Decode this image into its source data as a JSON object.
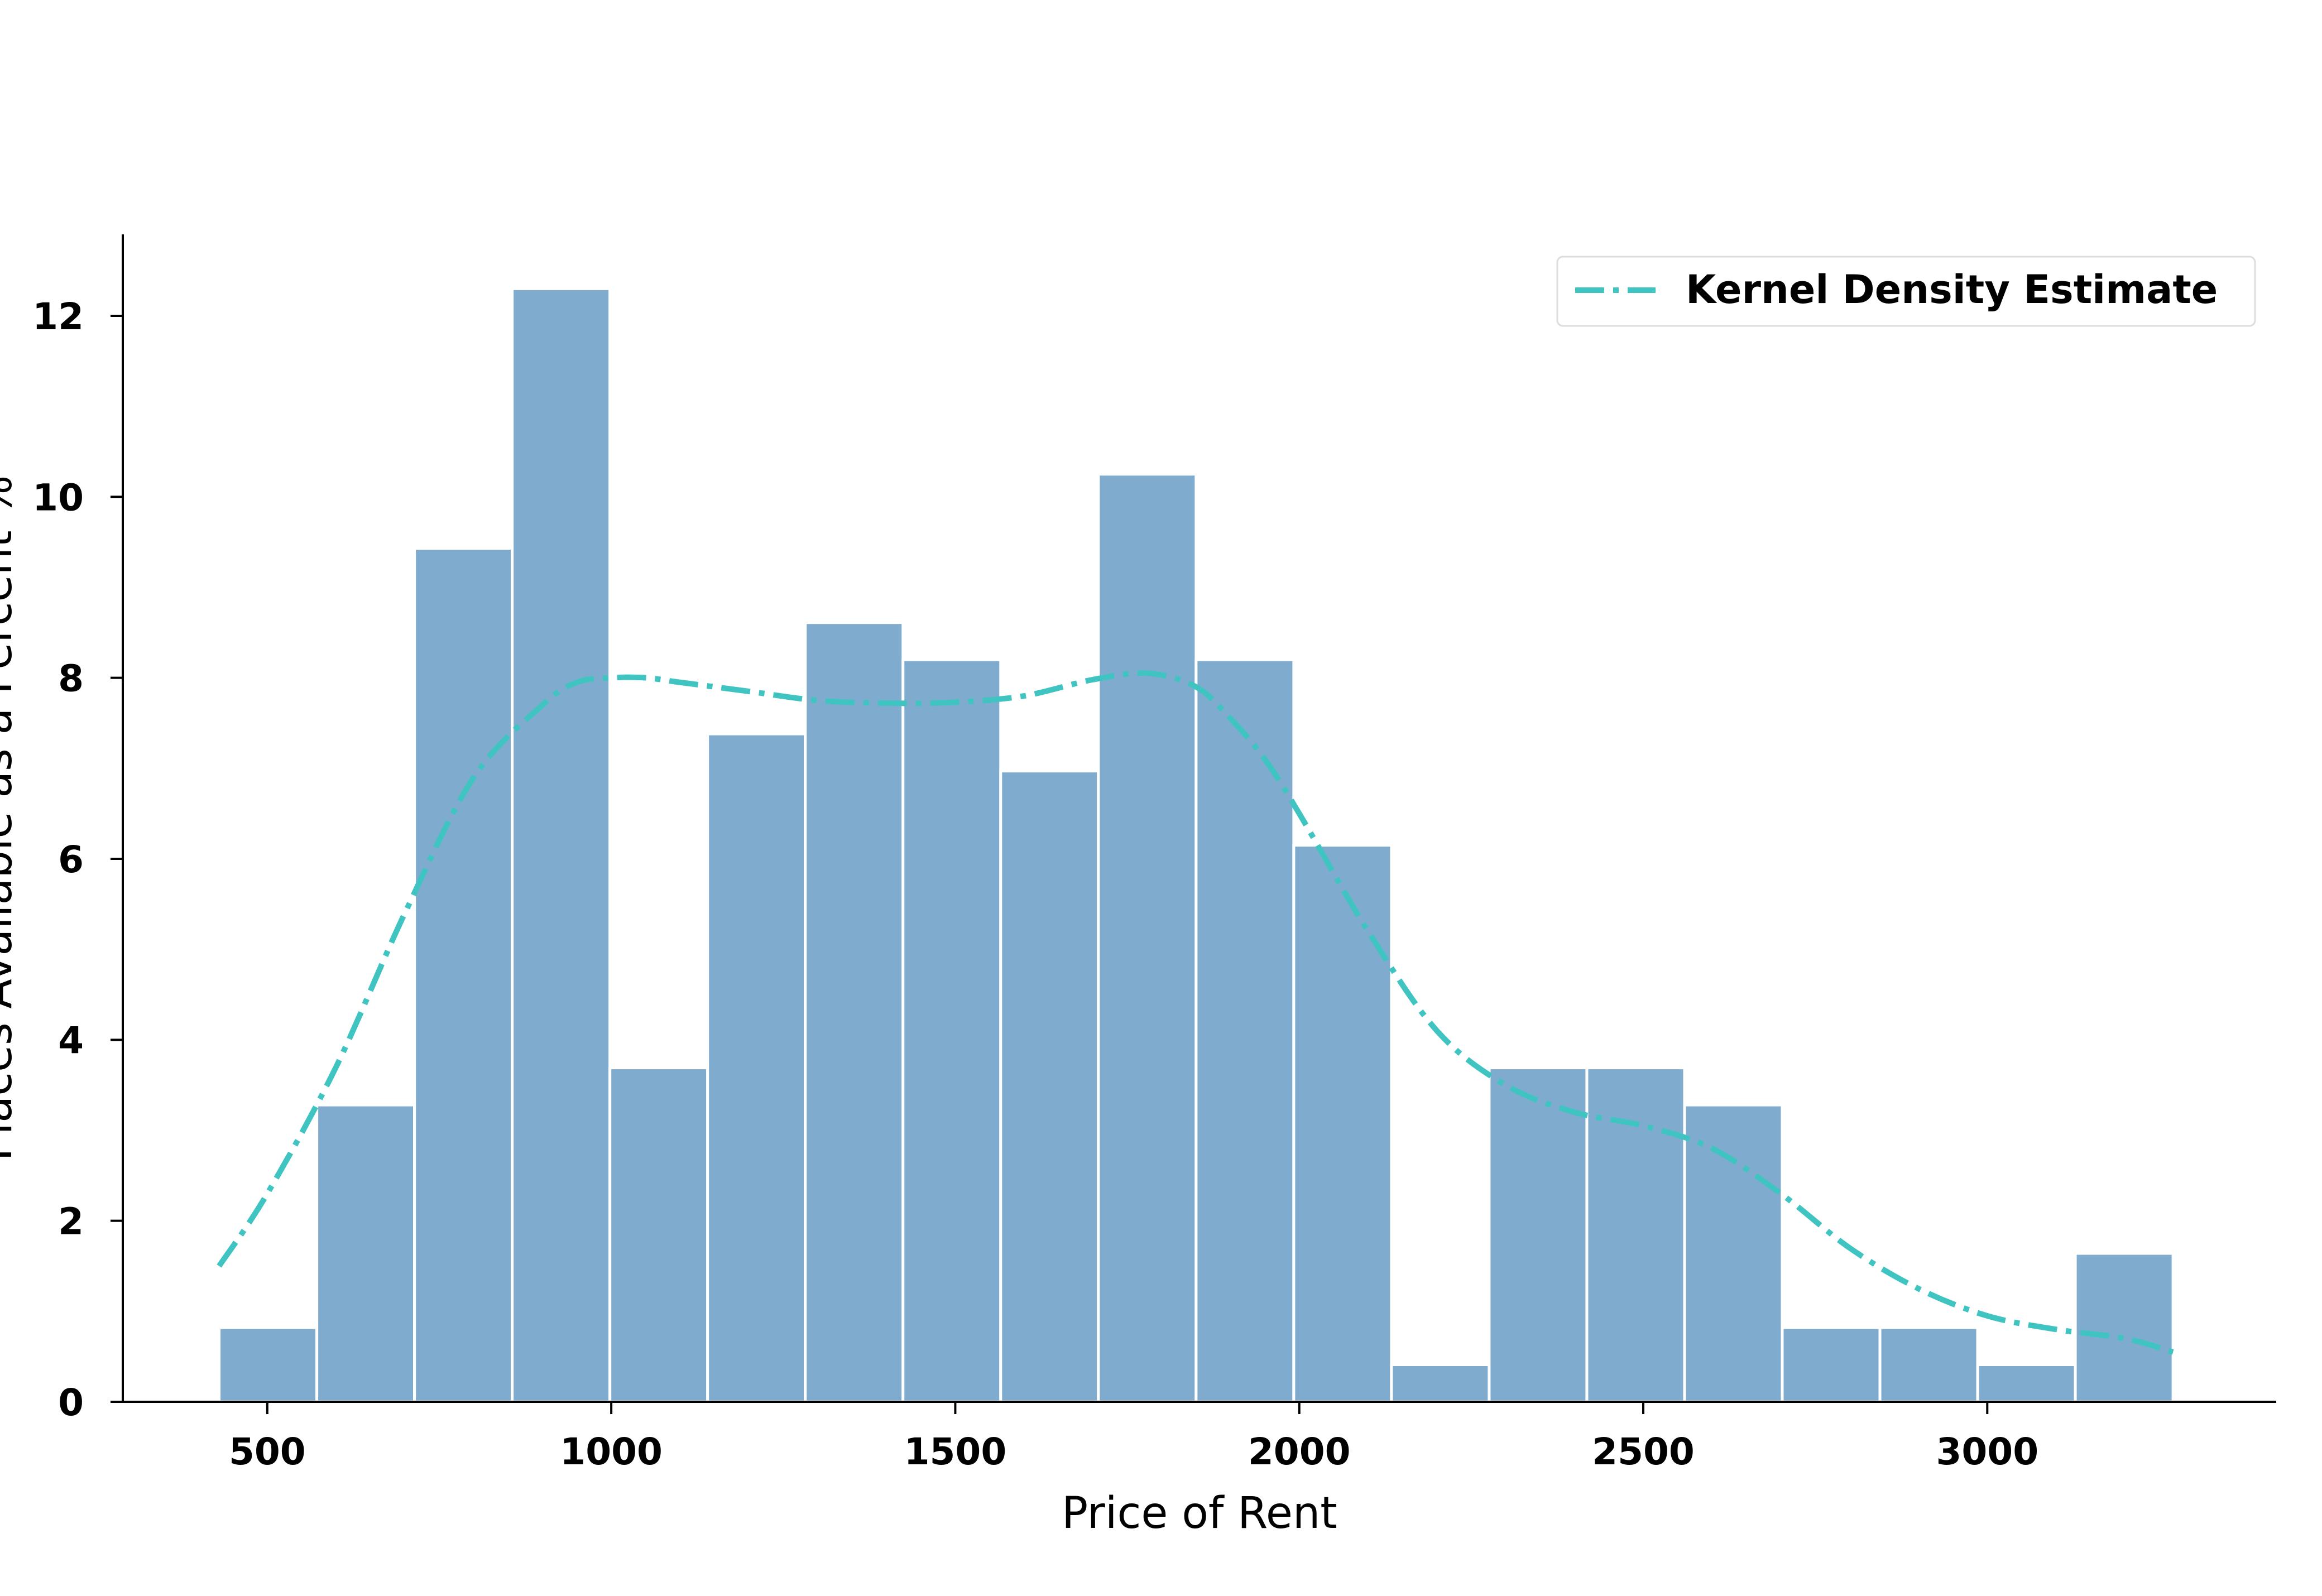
{
  "chart_data": {
    "type": "histogram",
    "xlabel": "Price of Rent",
    "ylabel": "Places Available as a Percent %",
    "xlim": [
      290,
      3420
    ],
    "ylim": [
      0,
      12.9
    ],
    "xticks": [
      500,
      1000,
      1500,
      2000,
      2500,
      3000
    ],
    "yticks": [
      0,
      2,
      4,
      6,
      8,
      10,
      12
    ],
    "legend_position": "top-right",
    "grid": false,
    "bar_color": "#7facce",
    "kde_color": "#3fc4c2",
    "bins": [
      {
        "start": 430,
        "end": 572,
        "value": 0.82
      },
      {
        "start": 572,
        "end": 714,
        "value": 3.28
      },
      {
        "start": 714,
        "end": 856,
        "value": 9.43
      },
      {
        "start": 856,
        "end": 998,
        "value": 12.3
      },
      {
        "start": 998,
        "end": 1140,
        "value": 3.69
      },
      {
        "start": 1140,
        "end": 1282,
        "value": 7.38
      },
      {
        "start": 1282,
        "end": 1424,
        "value": 8.61
      },
      {
        "start": 1424,
        "end": 1566,
        "value": 8.2
      },
      {
        "start": 1566,
        "end": 1708,
        "value": 6.97
      },
      {
        "start": 1708,
        "end": 1850,
        "value": 10.25
      },
      {
        "start": 1850,
        "end": 1992,
        "value": 8.2
      },
      {
        "start": 1992,
        "end": 2134,
        "value": 6.15
      },
      {
        "start": 2134,
        "end": 2276,
        "value": 0.41
      },
      {
        "start": 2276,
        "end": 2418,
        "value": 3.69
      },
      {
        "start": 2418,
        "end": 2560,
        "value": 3.69
      },
      {
        "start": 2560,
        "end": 2702,
        "value": 3.28
      },
      {
        "start": 2702,
        "end": 2844,
        "value": 0.82
      },
      {
        "start": 2844,
        "end": 2986,
        "value": 0.82
      },
      {
        "start": 2986,
        "end": 3128,
        "value": 0.41
      },
      {
        "start": 3128,
        "end": 3270,
        "value": 1.64
      }
    ],
    "kde": {
      "name": "Kernel Density Estimate",
      "x": [
        430,
        500,
        600,
        700,
        800,
        900,
        950,
        1000,
        1050,
        1100,
        1200,
        1300,
        1400,
        1500,
        1600,
        1700,
        1780,
        1850,
        1900,
        1950,
        2000,
        2100,
        2200,
        2300,
        2400,
        2500,
        2600,
        2700,
        2800,
        2900,
        3000,
        3100,
        3200,
        3270
      ],
      "y": [
        1.5,
        2.3,
        3.7,
        5.4,
        6.9,
        7.7,
        7.95,
        8.0,
        8.0,
        7.95,
        7.85,
        7.75,
        7.72,
        7.73,
        7.8,
        7.98,
        8.05,
        7.9,
        7.55,
        7.1,
        6.5,
        5.2,
        4.1,
        3.5,
        3.2,
        3.05,
        2.8,
        2.3,
        1.7,
        1.25,
        0.95,
        0.8,
        0.7,
        0.55
      ]
    }
  }
}
